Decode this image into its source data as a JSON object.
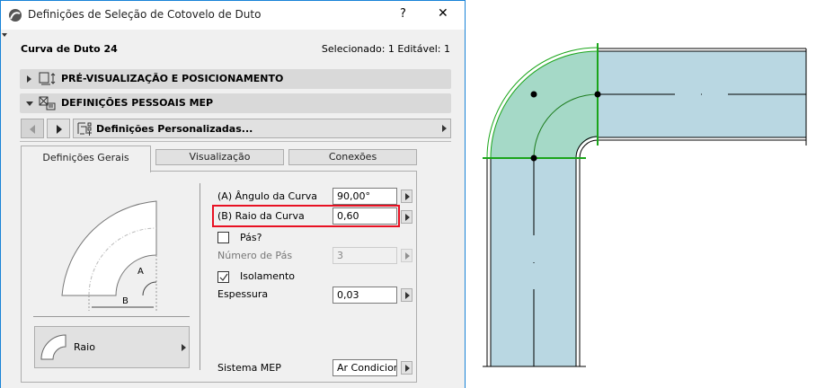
{
  "window": {
    "title": "Definições de Seleção de Cotovelo de Duto",
    "help": "?",
    "close": "✕"
  },
  "info": {
    "element_name": "Curva de Duto 24",
    "selection": "Selecionado: 1 Editável: 1"
  },
  "panels": [
    {
      "label": "PRÉ-VISUALIZAÇÃO E POSICIONAMENTO",
      "expanded": false
    },
    {
      "label": "DEFINIÇÕES PESSOAIS MEP",
      "expanded": true
    }
  ],
  "settings_nav": {
    "dropdown": "Definições Personalizadas..."
  },
  "tabs": [
    {
      "label": "Definições Gerais",
      "active": true
    },
    {
      "label": "Visualização"
    },
    {
      "label": "Conexões"
    }
  ],
  "preview": {
    "label_a": "A",
    "label_b": "B"
  },
  "shape_selector": {
    "label": "Raio"
  },
  "fields": {
    "angle": {
      "label": "(A) Ângulo da Curva",
      "value": "90,00°"
    },
    "radius": {
      "label": "(B) Raio da Curva",
      "value": "0,60",
      "highlighted": true,
      "highlight_color": "#e81123"
    },
    "vanes": {
      "label": "Pás?",
      "checked": false
    },
    "vane_count": {
      "label": "Número de Pás",
      "value": "3",
      "disabled": true
    },
    "insulation": {
      "label": "Isolamento",
      "checked": true
    },
    "thickness": {
      "label": "Espessura",
      "value": "0,03"
    },
    "mep_system": {
      "label": "Sistema MEP",
      "value": "Ar Condicior"
    }
  },
  "drawing": {
    "duct_color": "#b9d7e2",
    "selected_color": "#a5d9c7",
    "selection_line_color": "#1aa51a"
  }
}
